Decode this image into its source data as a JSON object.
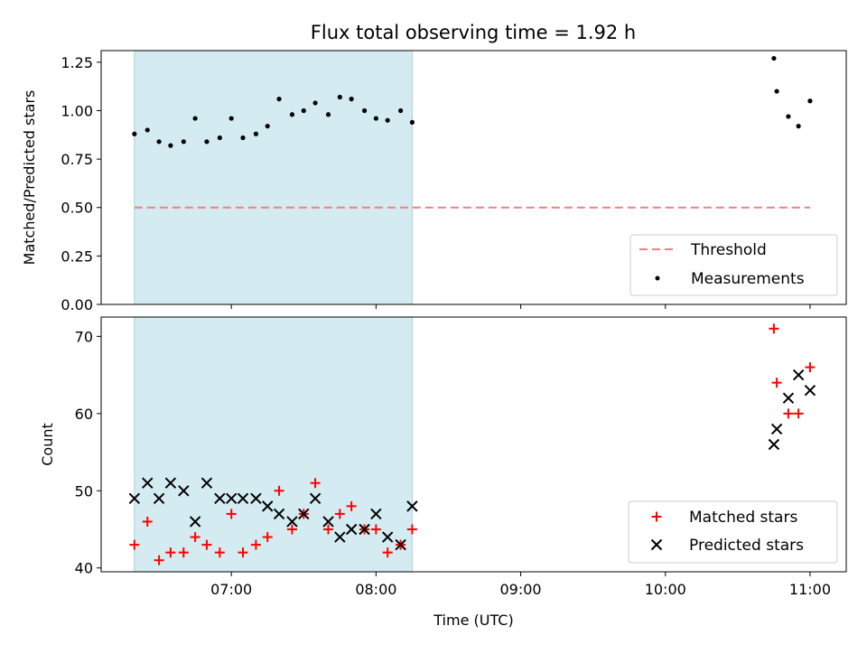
{
  "chart_data": {
    "title": "Flux total observing time = 1.92 h",
    "shared_x": {
      "label": "Time (UTC)",
      "range_hours": [
        6.1,
        11.25
      ],
      "ticks": [
        {
          "value": 7,
          "label": "07:00"
        },
        {
          "value": 8,
          "label": "08:00"
        },
        {
          "value": 9,
          "label": "09:00"
        },
        {
          "value": 10,
          "label": "10:00"
        },
        {
          "value": 11,
          "label": "11:00"
        }
      ]
    },
    "shaded_interval_hours": [
      6.33,
      8.25
    ],
    "shade_color": "#d4ebf1",
    "panels": [
      {
        "type": "scatter",
        "ylabel": "Matched/Predicted stars",
        "ylim": [
          0,
          1.31
        ],
        "yticks": [
          "0.00",
          "0.25",
          "0.50",
          "0.75",
          "1.00",
          "1.25"
        ],
        "threshold": {
          "name": "Threshold",
          "value": 0.5,
          "x_range": [
            6.33,
            11.0
          ],
          "color": "#f08080"
        },
        "series": [
          {
            "name": "Measurements",
            "marker": "dot",
            "color": "#000000",
            "x": [
              6.33,
              6.42,
              6.5,
              6.58,
              6.67,
              6.75,
              6.83,
              6.92,
              7.0,
              7.08,
              7.17,
              7.25,
              7.33,
              7.42,
              7.5,
              7.58,
              7.67,
              7.75,
              7.83,
              7.92,
              8.0,
              8.08,
              8.17,
              8.25,
              10.75,
              10.77,
              10.85,
              10.92,
              11.0
            ],
            "y": [
              0.88,
              0.9,
              0.84,
              0.82,
              0.84,
              0.96,
              0.84,
              0.86,
              0.96,
              0.86,
              0.88,
              0.92,
              1.06,
              0.98,
              1.0,
              1.04,
              0.98,
              1.07,
              1.06,
              1.0,
              0.96,
              0.95,
              1.0,
              0.94,
              1.27,
              1.1,
              0.97,
              0.92,
              1.05
            ]
          }
        ],
        "legend": {
          "placement": "lower-right",
          "entries": [
            "Threshold",
            "Measurements"
          ]
        }
      },
      {
        "type": "scatter",
        "ylabel": "Count",
        "ylim": [
          39.5,
          72.5
        ],
        "yticks": [
          "40",
          "50",
          "60",
          "70"
        ],
        "series": [
          {
            "name": "Matched stars",
            "marker": "plus",
            "color": "#ff0000",
            "x": [
              6.33,
              6.42,
              6.5,
              6.58,
              6.67,
              6.75,
              6.83,
              6.92,
              7.0,
              7.08,
              7.17,
              7.25,
              7.33,
              7.42,
              7.5,
              7.58,
              7.67,
              7.75,
              7.83,
              7.92,
              8.0,
              8.08,
              8.17,
              8.25,
              10.75,
              10.77,
              10.85,
              10.92,
              11.0
            ],
            "y": [
              43,
              46,
              41,
              42,
              42,
              44,
              43,
              42,
              47,
              42,
              43,
              44,
              50,
              45,
              47,
              51,
              45,
              47,
              48,
              45,
              45,
              42,
              43,
              45,
              71,
              64,
              60,
              60,
              66
            ]
          },
          {
            "name": "Predicted stars",
            "marker": "x",
            "color": "#000000",
            "x": [
              6.33,
              6.42,
              6.5,
              6.58,
              6.67,
              6.75,
              6.83,
              6.92,
              7.0,
              7.08,
              7.17,
              7.25,
              7.33,
              7.42,
              7.5,
              7.58,
              7.67,
              7.75,
              7.83,
              7.92,
              8.0,
              8.08,
              8.17,
              8.25,
              10.75,
              10.77,
              10.85,
              10.92,
              11.0
            ],
            "y": [
              49,
              51,
              49,
              51,
              50,
              46,
              51,
              49,
              49,
              49,
              49,
              48,
              47,
              46,
              47,
              49,
              46,
              44,
              45,
              45,
              47,
              44,
              43,
              48,
              56,
              58,
              62,
              65,
              63
            ]
          }
        ],
        "legend": {
          "placement": "lower-right",
          "entries": [
            "Matched stars",
            "Predicted stars"
          ]
        }
      }
    ]
  }
}
